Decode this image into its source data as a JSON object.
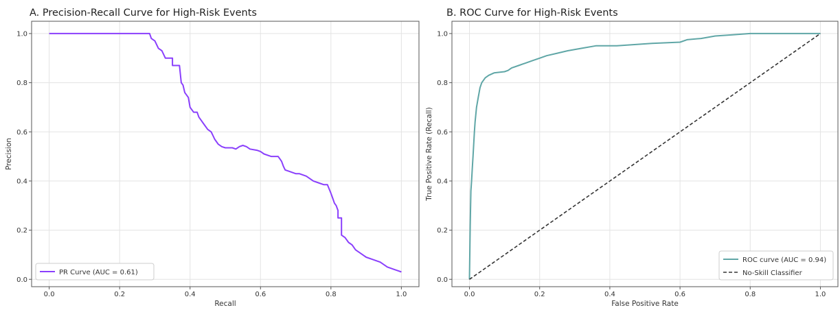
{
  "chart_data": [
    {
      "type": "line",
      "title": "A. Precision-Recall Curve for High-Risk Events",
      "xlabel": "Recall",
      "ylabel": "Precision",
      "xlim": [
        -0.05,
        1.05
      ],
      "ylim": [
        -0.03,
        1.05
      ],
      "xticks": [
        "0.0",
        "0.2",
        "0.4",
        "0.6",
        "0.8",
        "1.0"
      ],
      "yticks": [
        "0.0",
        "0.2",
        "0.4",
        "0.6",
        "0.8",
        "1.0"
      ],
      "grid": true,
      "legend_position": "lower-left",
      "series": [
        {
          "name": "PR Curve (AUC = 0.61)",
          "color": "#8a3ffc",
          "points": [
            [
              0.0,
              1.0
            ],
            [
              0.285,
              1.0
            ],
            [
              0.29,
              0.98
            ],
            [
              0.3,
              0.97
            ],
            [
              0.31,
              0.94
            ],
            [
              0.32,
              0.93
            ],
            [
              0.33,
              0.9
            ],
            [
              0.35,
              0.9
            ],
            [
              0.35,
              0.87
            ],
            [
              0.37,
              0.87
            ],
            [
              0.375,
              0.8
            ],
            [
              0.38,
              0.79
            ],
            [
              0.385,
              0.76
            ],
            [
              0.395,
              0.74
            ],
            [
              0.4,
              0.7
            ],
            [
              0.41,
              0.68
            ],
            [
              0.42,
              0.68
            ],
            [
              0.425,
              0.66
            ],
            [
              0.43,
              0.65
            ],
            [
              0.44,
              0.63
            ],
            [
              0.45,
              0.61
            ],
            [
              0.46,
              0.6
            ],
            [
              0.47,
              0.57
            ],
            [
              0.48,
              0.55
            ],
            [
              0.49,
              0.54
            ],
            [
              0.5,
              0.535
            ],
            [
              0.52,
              0.535
            ],
            [
              0.53,
              0.53
            ],
            [
              0.54,
              0.54
            ],
            [
              0.55,
              0.545
            ],
            [
              0.56,
              0.54
            ],
            [
              0.57,
              0.53
            ],
            [
              0.59,
              0.525
            ],
            [
              0.6,
              0.52
            ],
            [
              0.61,
              0.51
            ],
            [
              0.63,
              0.5
            ],
            [
              0.65,
              0.5
            ],
            [
              0.655,
              0.49
            ],
            [
              0.66,
              0.48
            ],
            [
              0.665,
              0.46
            ],
            [
              0.67,
              0.445
            ],
            [
              0.68,
              0.44
            ],
            [
              0.7,
              0.43
            ],
            [
              0.71,
              0.43
            ],
            [
              0.73,
              0.42
            ],
            [
              0.75,
              0.4
            ],
            [
              0.77,
              0.39
            ],
            [
              0.78,
              0.385
            ],
            [
              0.79,
              0.385
            ],
            [
              0.8,
              0.35
            ],
            [
              0.805,
              0.33
            ],
            [
              0.81,
              0.31
            ],
            [
              0.815,
              0.3
            ],
            [
              0.82,
              0.28
            ],
            [
              0.82,
              0.25
            ],
            [
              0.83,
              0.25
            ],
            [
              0.83,
              0.18
            ],
            [
              0.84,
              0.17
            ],
            [
              0.85,
              0.15
            ],
            [
              0.86,
              0.14
            ],
            [
              0.87,
              0.12
            ],
            [
              0.88,
              0.11
            ],
            [
              0.89,
              0.1
            ],
            [
              0.9,
              0.09
            ],
            [
              0.92,
              0.08
            ],
            [
              0.94,
              0.07
            ],
            [
              0.96,
              0.05
            ],
            [
              0.98,
              0.04
            ],
            [
              0.99,
              0.035
            ],
            [
              1.0,
              0.03
            ]
          ]
        }
      ]
    },
    {
      "type": "line",
      "title": "B. ROC Curve for High-Risk Events",
      "xlabel": "False Positive Rate",
      "ylabel": "True Positive Rate (Recall)",
      "xlim": [
        -0.05,
        1.05
      ],
      "ylim": [
        -0.03,
        1.05
      ],
      "xticks": [
        "0.0",
        "0.2",
        "0.4",
        "0.6",
        "0.8",
        "1.0"
      ],
      "yticks": [
        "0.0",
        "0.2",
        "0.4",
        "0.6",
        "0.8",
        "1.0"
      ],
      "grid": true,
      "legend_position": "lower-right",
      "series": [
        {
          "name": "ROC curve (AUC = 0.94)",
          "color": "#5fa6a6",
          "dash": false,
          "points": [
            [
              0.0,
              0.0
            ],
            [
              0.002,
              0.22
            ],
            [
              0.004,
              0.36
            ],
            [
              0.006,
              0.4
            ],
            [
              0.008,
              0.45
            ],
            [
              0.01,
              0.5
            ],
            [
              0.012,
              0.55
            ],
            [
              0.014,
              0.6
            ],
            [
              0.016,
              0.64
            ],
            [
              0.02,
              0.7
            ],
            [
              0.025,
              0.74
            ],
            [
              0.03,
              0.78
            ],
            [
              0.035,
              0.8
            ],
            [
              0.045,
              0.82
            ],
            [
              0.055,
              0.83
            ],
            [
              0.07,
              0.84
            ],
            [
              0.1,
              0.845
            ],
            [
              0.11,
              0.85
            ],
            [
              0.12,
              0.86
            ],
            [
              0.14,
              0.87
            ],
            [
              0.16,
              0.88
            ],
            [
              0.18,
              0.89
            ],
            [
              0.2,
              0.9
            ],
            [
              0.22,
              0.91
            ],
            [
              0.25,
              0.92
            ],
            [
              0.28,
              0.93
            ],
            [
              0.32,
              0.94
            ],
            [
              0.36,
              0.95
            ],
            [
              0.42,
              0.95
            ],
            [
              0.47,
              0.955
            ],
            [
              0.52,
              0.96
            ],
            [
              0.6,
              0.965
            ],
            [
              0.62,
              0.975
            ],
            [
              0.66,
              0.98
            ],
            [
              0.7,
              0.99
            ],
            [
              0.75,
              0.995
            ],
            [
              0.8,
              1.0
            ],
            [
              1.0,
              1.0
            ]
          ]
        },
        {
          "name": "No-Skill Classifier",
          "color": "#333333",
          "dash": true,
          "points": [
            [
              0.0,
              0.0
            ],
            [
              1.0,
              1.0
            ]
          ]
        }
      ]
    }
  ]
}
